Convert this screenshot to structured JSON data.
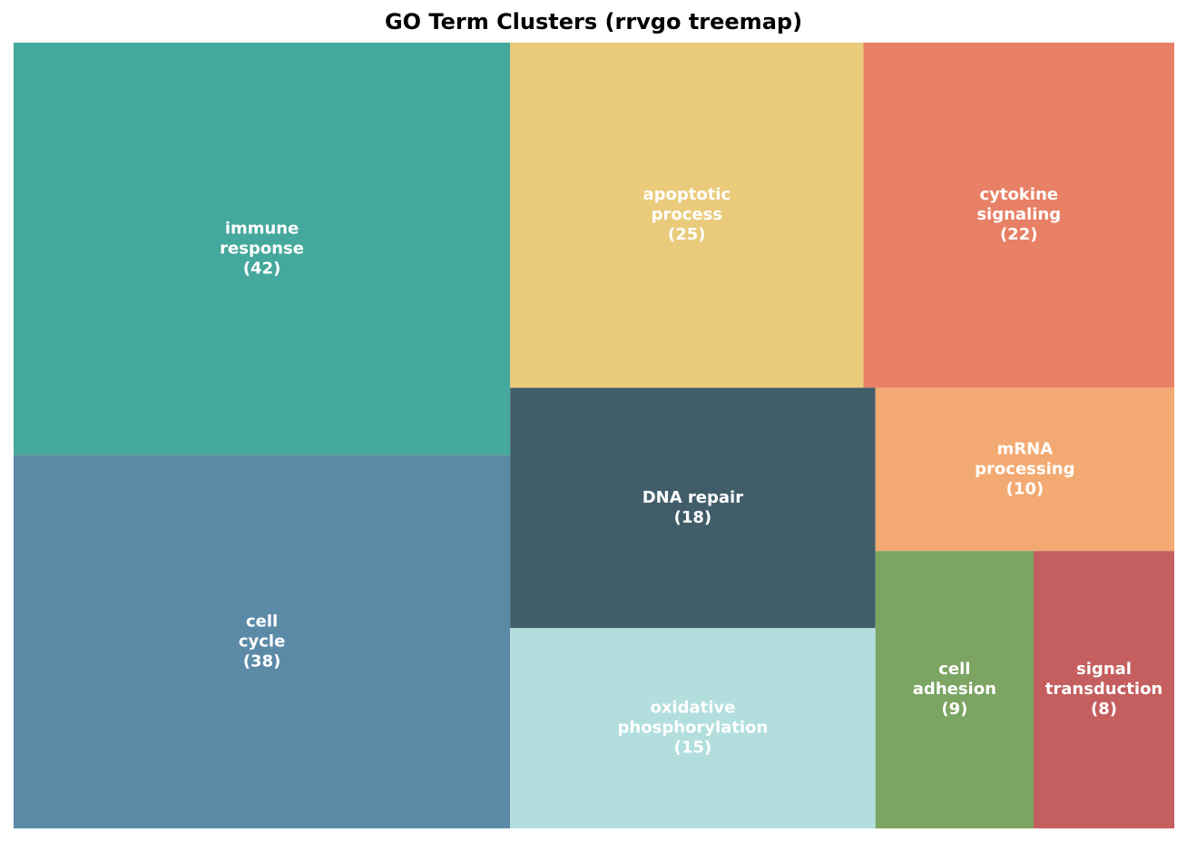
{
  "chart_data": {
    "type": "treemap",
    "title": "GO Term Clusters (rrvgo treemap)",
    "label_color": "#ffffff",
    "tiles": [
      {
        "name": "immune response",
        "label_lines": [
          "immune",
          "response",
          "(42)"
        ],
        "value": 42,
        "color": "#45a89c"
      },
      {
        "name": "cell cycle",
        "label_lines": [
          "cell",
          "cycle",
          "(38)"
        ],
        "value": 38,
        "color": "#5b8aa7"
      },
      {
        "name": "apoptotic process",
        "label_lines": [
          "apoptotic",
          "process",
          "(25)"
        ],
        "value": 25,
        "color": "#eacb7c"
      },
      {
        "name": "cytokine signaling",
        "label_lines": [
          "cytokine",
          "signaling",
          "(22)"
        ],
        "value": 22,
        "color": "#e88066"
      },
      {
        "name": "DNA repair",
        "label_lines": [
          "DNA repair",
          "(18)"
        ],
        "value": 18,
        "color": "#415d69"
      },
      {
        "name": "oxidative phosphorylation",
        "label_lines": [
          "oxidative",
          "phosphorylation",
          "(15)"
        ],
        "value": 15,
        "color": "#b3dede"
      },
      {
        "name": "mRNA processing",
        "label_lines": [
          "mRNA",
          "processing",
          "(10)"
        ],
        "value": 10,
        "color": "#f3aa72"
      },
      {
        "name": "cell adhesion",
        "label_lines": [
          "cell",
          "adhesion",
          "(9)"
        ],
        "value": 9,
        "color": "#7ca462"
      },
      {
        "name": "signal transduction",
        "label_lines": [
          "signal",
          "transduction",
          "(8)"
        ],
        "value": 8,
        "color": "#c45e5f"
      }
    ]
  }
}
